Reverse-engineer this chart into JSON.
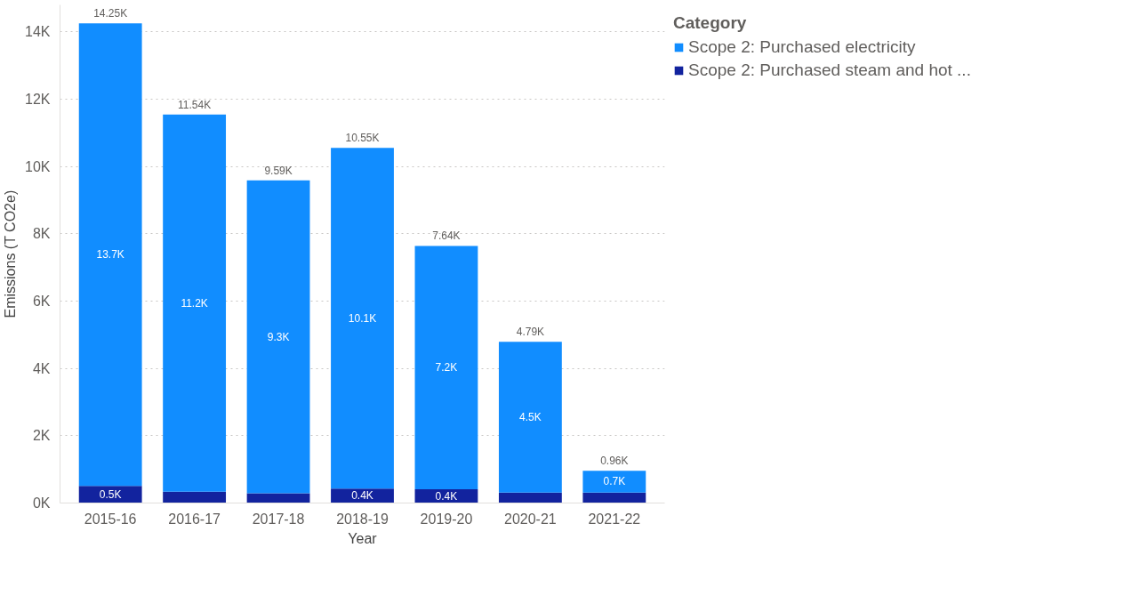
{
  "chart_data": {
    "type": "bar",
    "stacked": true,
    "xlabel": "Year",
    "ylabel": "Emissions (T CO2e)",
    "legend_title": "Category",
    "legend": "top right",
    "categories": [
      "2015-16",
      "2016-17",
      "2017-18",
      "2018-19",
      "2019-20",
      "2020-21",
      "2021-22"
    ],
    "series": [
      {
        "name": "Scope 2: Purchased steam and hot ...",
        "color": "#12239e",
        "values": [
          510,
          340,
          290,
          430,
          410,
          310,
          310
        ],
        "value_labels": [
          "0.5K",
          null,
          null,
          "0.4K",
          "0.4K",
          null,
          null
        ]
      },
      {
        "name": "Scope 2: Purchased electricity",
        "color": "#118dff",
        "values": [
          13740,
          11200,
          9300,
          10120,
          7230,
          4480,
          650
        ],
        "value_labels": [
          "13.7K",
          "11.2K",
          "9.3K",
          "10.1K",
          "7.2K",
          "4.5K",
          "0.7K"
        ]
      }
    ],
    "totals": [
      "14.25K",
      "11.54K",
      "9.59K",
      "10.55K",
      "7.64K",
      "4.79K",
      "0.96K"
    ],
    "ylim": [
      0,
      14800
    ],
    "yticks": [
      {
        "value": 0,
        "label": "0K"
      },
      {
        "value": 2000,
        "label": "2K"
      },
      {
        "value": 4000,
        "label": "4K"
      },
      {
        "value": 6000,
        "label": "6K"
      },
      {
        "value": 8000,
        "label": "8K"
      },
      {
        "value": 10000,
        "label": "10K"
      },
      {
        "value": 12000,
        "label": "12K"
      },
      {
        "value": 14000,
        "label": "14K"
      }
    ],
    "grid": "y"
  }
}
